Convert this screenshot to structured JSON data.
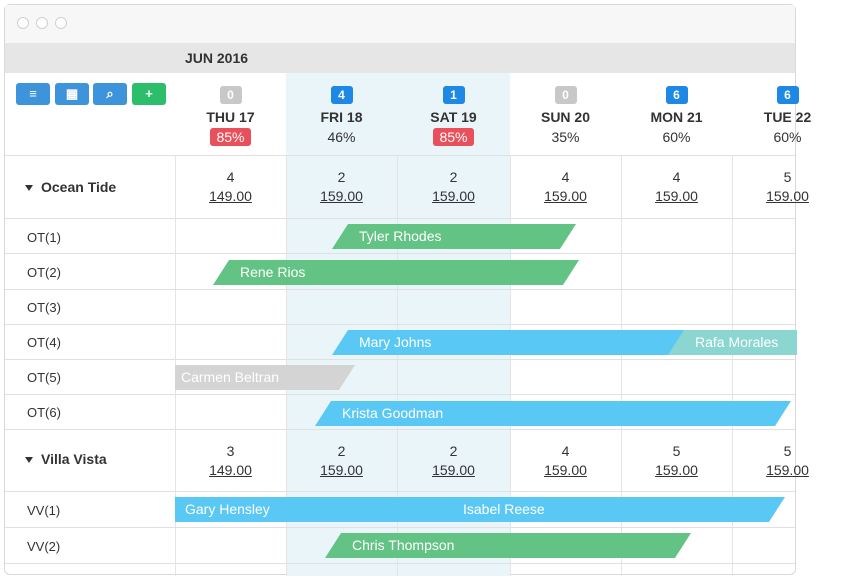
{
  "month": "JUN 2016",
  "toolbar": {
    "menu_icon": "≡",
    "calendar_icon": "▦",
    "search_icon": "⌕",
    "add_icon": "+"
  },
  "days": [
    {
      "badge": "0",
      "name": "THU 17",
      "pct": "85%"
    },
    {
      "badge": "4",
      "name": "FRI 18",
      "pct": "46%"
    },
    {
      "badge": "1",
      "name": "SAT 19",
      "pct": "85%"
    },
    {
      "badge": "0",
      "name": "SUN 20",
      "pct": "35%"
    },
    {
      "badge": "6",
      "name": "MON 21",
      "pct": "60%"
    },
    {
      "badge": "6",
      "name": "TUE 22",
      "pct": "60%"
    }
  ],
  "groups": [
    {
      "name": "Ocean Tide",
      "counts": [
        "4",
        "2",
        "2",
        "4",
        "4",
        "5"
      ],
      "prices": [
        "149.00",
        "159.00",
        "159.00",
        "159.00",
        "159.00",
        "159.00"
      ],
      "rooms": [
        "OT(1)",
        "OT(2)",
        "OT(3)",
        "OT(4)",
        "OT(5)",
        "OT(6)"
      ]
    },
    {
      "name": "Villa Vista",
      "counts": [
        "3",
        "2",
        "2",
        "4",
        "5",
        "5"
      ],
      "prices": [
        "149.00",
        "159.00",
        "159.00",
        "159.00",
        "159.00",
        "159.00"
      ],
      "rooms": [
        "VV(1)",
        "VV(2)"
      ]
    }
  ],
  "bookings": [
    {
      "guest": "Tyler Rhodes",
      "color": "green"
    },
    {
      "guest": "Rene Rios",
      "color": "green"
    },
    {
      "guest": "Mary Johns",
      "color": "blue"
    },
    {
      "guest": "Rafa Morales",
      "color": "teal"
    },
    {
      "guest": "Carmen Beltran",
      "color": "grey"
    },
    {
      "guest": "Krista Goodman",
      "color": "blue"
    },
    {
      "guest": "Gary Hensley",
      "color": "blue"
    },
    {
      "guest": "Isabel Reese",
      "color": "blue"
    },
    {
      "guest": "Chris Thompson",
      "color": "green"
    }
  ]
}
